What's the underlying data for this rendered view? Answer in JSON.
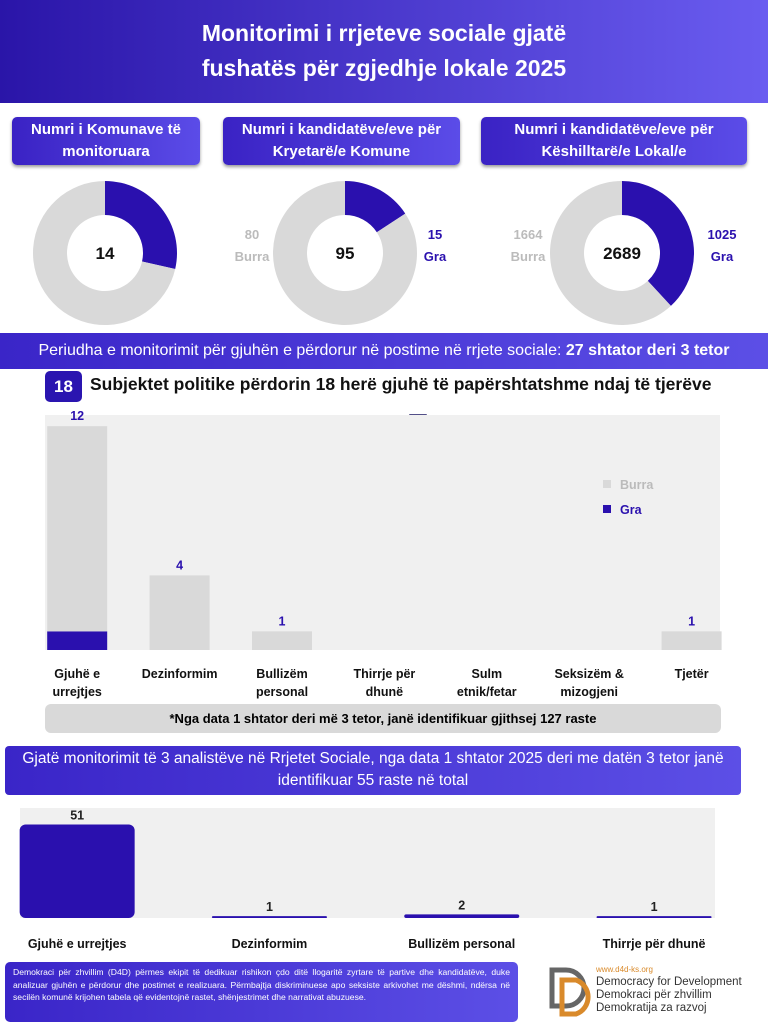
{
  "header": {
    "title": "Monitorimi i rrjeteve sociale gjatë fushatës për zgjedhje lokale 2025"
  },
  "chart_data": [
    {
      "type": "pie",
      "title": "Numri i Komunave të monitoruara",
      "total": 14,
      "categories": [
        null,
        null
      ],
      "values": [
        4,
        10
      ],
      "colors": [
        "#2a10ae",
        "#d9d9d9"
      ]
    },
    {
      "type": "pie",
      "title": "Numri i kandidatëve/eve për Kryetarë/e Komune",
      "total": 95,
      "categories": [
        "Gra",
        "Burra"
      ],
      "values": [
        15,
        80
      ],
      "colors": [
        "#2a10ae",
        "#d9d9d9"
      ]
    },
    {
      "type": "pie",
      "title": "Numri i kandidatëve/eve për Këshilltarë/e Lokal/e",
      "total": 2689,
      "categories": [
        "Gra",
        "Burra"
      ],
      "values": [
        1025,
        1664
      ],
      "colors": [
        "#2a10ae",
        "#d9d9d9"
      ]
    },
    {
      "type": "bar",
      "badge": 18,
      "title": "Subjektet politike përdorin 18 herë gjuhë të papërshtatshme ndaj të tjerëve",
      "categories": [
        "Gjuhë e urrejtjes",
        "Dezinformim",
        "Bullizëm personal",
        "Thirrje për dhunë",
        "Sulm etnik/fetar",
        "Seksizëm & mizogjeni",
        "Tjetër"
      ],
      "series": [
        {
          "name": "Burra",
          "color": "#d9d9d9",
          "values": [
            11,
            4,
            1,
            0,
            0,
            0,
            1
          ]
        },
        {
          "name": "Gra",
          "color": "#2a10ae",
          "values": [
            1,
            0,
            0,
            0,
            0,
            0,
            0
          ]
        }
      ],
      "totals": [
        12,
        4,
        1,
        null,
        null,
        null,
        1
      ],
      "ylim": [
        0,
        12.6
      ],
      "legend": "right",
      "note": "*Nga data 1 shtator deri më 3 tetor, janë identifikuar gjithsej 127 raste"
    },
    {
      "type": "bar",
      "title": "Gjatë monitorimit të 3 analistëve në Rrjetet Sociale, nga data 1 shtator 2025 deri me datën 3 tetor janë identifikuar 55 raste në total",
      "categories": [
        "Gjuhë e urrejtjes",
        "Dezinformim",
        "Bullizëm personal",
        "Thirrje për dhunë"
      ],
      "values": [
        51,
        1,
        2,
        1
      ],
      "color": "#2a10ae",
      "ylim": [
        0,
        60
      ]
    }
  ],
  "period": {
    "text": "Periudha e monitorimit për gjuhën e përdorur në postime në rrjete sociale:",
    "highlight": "27 shtator deri 3 tetor"
  },
  "footer": {
    "text": "Demokraci për zhvillim (D4D) përmes ekipit të dedikuar rishikon çdo ditë llogaritë zyrtare të partive dhe kandidatëve, duke analizuar gjuhën e përdorur dhe postimet e realizuara. Përmbajtja diskriminuese apo seksiste arkivohet me dëshmi, ndërsa në secilën komunë krijohen tabela që evidentojnë rastet, shënjestrimet dhe narrativat abuzuese.",
    "url": "www.d4d-ks.org",
    "names": [
      "Democracy for Development",
      "Demokraci për zhvillim",
      "Demokratija za razvoj"
    ]
  }
}
